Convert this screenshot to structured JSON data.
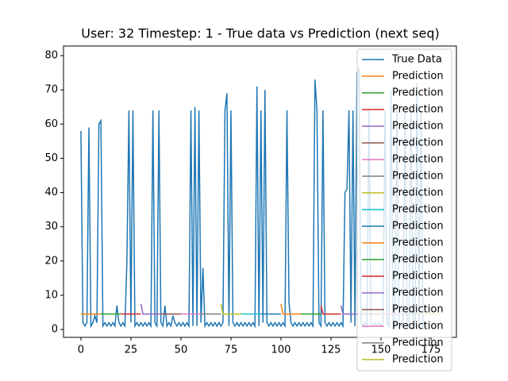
{
  "chart_data": {
    "type": "line",
    "title": "User: 32 Timestep: 1 - True data vs Prediction (next seq)",
    "xlim": [
      -8.7,
      187.7
    ],
    "ylim": [
      -2.3,
      82.8
    ],
    "xticks": [
      0,
      25,
      50,
      75,
      100,
      125,
      150,
      175
    ],
    "yticks": [
      0,
      10,
      20,
      30,
      40,
      50,
      60,
      70,
      80
    ],
    "legend": "upper right",
    "series": [
      {
        "name": "True Data",
        "color": "#1f77b4",
        "x": [
          0,
          1,
          2,
          3,
          4,
          5,
          6,
          7,
          8,
          9,
          10,
          11,
          12,
          13,
          14,
          15,
          16,
          17,
          18,
          19,
          20,
          21,
          22,
          23,
          24,
          25,
          26,
          27,
          28,
          29,
          30,
          31,
          32,
          33,
          34,
          35,
          36,
          37,
          38,
          39,
          40,
          41,
          42,
          43,
          44,
          45,
          46,
          47,
          48,
          49,
          50,
          51,
          52,
          53,
          54,
          55,
          56,
          57,
          58,
          59,
          60,
          61,
          62,
          63,
          64,
          65,
          66,
          67,
          68,
          69,
          70,
          71,
          72,
          73,
          74,
          75,
          76,
          77,
          78,
          79,
          80,
          81,
          82,
          83,
          84,
          85,
          86,
          87,
          88,
          89,
          90,
          91,
          92,
          93,
          94,
          95,
          96,
          97,
          98,
          99,
          100,
          101,
          102,
          103,
          104,
          105,
          106,
          107,
          108,
          109,
          110,
          111,
          112,
          113,
          114,
          115,
          116,
          117,
          118,
          119,
          120,
          121,
          122,
          123,
          124,
          125,
          126,
          127,
          128,
          129,
          130,
          131,
          132,
          133,
          134,
          135,
          136,
          137,
          138,
          139,
          140,
          141,
          142,
          143,
          144,
          145,
          146,
          147,
          148,
          149,
          150,
          151,
          152,
          153,
          154,
          155,
          156,
          157,
          158,
          159,
          160,
          161,
          162,
          163,
          164,
          165,
          166,
          167,
          168,
          169,
          170,
          171,
          172,
          173
        ],
        "values": [
          58,
          2,
          1,
          2,
          59,
          1,
          2,
          4,
          2,
          60,
          61,
          1,
          2,
          1,
          2,
          1,
          2,
          1,
          7,
          2,
          1,
          2,
          1,
          20,
          64,
          2,
          64,
          1,
          2,
          1,
          2,
          1,
          2,
          1,
          2,
          1,
          64,
          2,
          1,
          64,
          2,
          1,
          7,
          1,
          2,
          1,
          4,
          2,
          1,
          2,
          1,
          2,
          1,
          2,
          1,
          64,
          1,
          65,
          1,
          64,
          2,
          18,
          1,
          2,
          1,
          2,
          1,
          2,
          1,
          2,
          1,
          2,
          64,
          69,
          1,
          64,
          2,
          1,
          2,
          1,
          2,
          1,
          2,
          1,
          2,
          1,
          2,
          1,
          71,
          1,
          64,
          2,
          70,
          2,
          1,
          2,
          1,
          2,
          1,
          2,
          1,
          2,
          1,
          64,
          8,
          2,
          1,
          2,
          1,
          2,
          1,
          2,
          1,
          2,
          1,
          2,
          1,
          73,
          64,
          2,
          1,
          64,
          2,
          1,
          2,
          1,
          2,
          1,
          2,
          1,
          2,
          1,
          40,
          41,
          64,
          2,
          64,
          1,
          75,
          76,
          2,
          1,
          2,
          1,
          64,
          2,
          1,
          2,
          1,
          2,
          1,
          2,
          64,
          2,
          1,
          70,
          2,
          1,
          64,
          2,
          1,
          2,
          64,
          2,
          1,
          65,
          2,
          1,
          72,
          2,
          64,
          1,
          2,
          1
        ]
      },
      {
        "name": "Prediction",
        "color": "#ff7f0e",
        "x": [
          0,
          1,
          2,
          3,
          4,
          5,
          6,
          7,
          8,
          9,
          10
        ],
        "values": [
          4.6,
          4.5,
          4.5,
          4.5,
          4.5,
          4.5,
          4.5,
          4.5,
          4.5,
          4.5,
          4.5
        ]
      },
      {
        "name": "Prediction",
        "color": "#2ca02c",
        "x": [
          10,
          11,
          12,
          13,
          14,
          15,
          16,
          17,
          18,
          19,
          20
        ],
        "values": [
          4.6,
          4.5,
          4.5,
          4.5,
          4.5,
          4.5,
          4.5,
          4.5,
          4.5,
          4.5,
          4.5
        ]
      },
      {
        "name": "Prediction",
        "color": "#d62728",
        "x": [
          20,
          21,
          22,
          23,
          24,
          25,
          26,
          27,
          28,
          29,
          30
        ],
        "values": [
          4.6,
          4.5,
          4.5,
          4.5,
          4.5,
          4.5,
          4.5,
          4.5,
          4.5,
          4.5,
          4.5
        ]
      },
      {
        "name": "Prediction",
        "color": "#9467bd",
        "x": [
          30,
          31,
          32,
          33,
          34,
          35,
          36,
          37,
          38,
          39,
          40
        ],
        "values": [
          7.5,
          4.5,
          4.5,
          4.5,
          4.5,
          4.5,
          4.5,
          4.5,
          4.5,
          4.5,
          4.5
        ]
      },
      {
        "name": "Prediction",
        "color": "#8c564b",
        "x": [
          40,
          41,
          42,
          43,
          44,
          45,
          46,
          47,
          48,
          49,
          50
        ],
        "values": [
          4.6,
          4.5,
          4.5,
          4.5,
          4.5,
          4.5,
          4.5,
          4.5,
          4.5,
          4.5,
          4.5
        ]
      },
      {
        "name": "Prediction",
        "color": "#e377c2",
        "x": [
          50,
          51,
          52,
          53,
          54,
          55,
          56,
          57,
          58,
          59,
          60
        ],
        "values": [
          4.6,
          4.5,
          4.5,
          4.5,
          4.5,
          4.5,
          4.5,
          4.5,
          4.5,
          4.5,
          4.5
        ]
      },
      {
        "name": "Prediction",
        "color": "#7f7f7f",
        "x": [
          60,
          61,
          62,
          63,
          64,
          65,
          66,
          67,
          68,
          69,
          70
        ],
        "values": [
          4.6,
          4.5,
          4.5,
          4.5,
          4.5,
          4.5,
          4.5,
          4.5,
          4.5,
          4.5,
          4.5
        ]
      },
      {
        "name": "Prediction",
        "color": "#bcbd22",
        "x": [
          70,
          71,
          72,
          73,
          74,
          75,
          76,
          77,
          78,
          79,
          80
        ],
        "values": [
          7.5,
          4.5,
          4.5,
          4.5,
          4.5,
          4.5,
          4.5,
          4.5,
          4.5,
          4.5,
          4.5
        ]
      },
      {
        "name": "Prediction",
        "color": "#17becf",
        "x": [
          80,
          81,
          82,
          83,
          84,
          85,
          86,
          87,
          88,
          89,
          90
        ],
        "values": [
          4.6,
          4.5,
          4.5,
          4.5,
          4.5,
          4.5,
          4.5,
          4.5,
          4.5,
          4.5,
          4.5
        ]
      },
      {
        "name": "Prediction",
        "color": "#1f77b4",
        "x": [
          90,
          91,
          92,
          93,
          94,
          95,
          96,
          97,
          98,
          99,
          100
        ],
        "values": [
          4.6,
          4.5,
          4.5,
          4.5,
          4.5,
          4.5,
          4.5,
          4.5,
          4.5,
          4.5,
          4.5
        ]
      },
      {
        "name": "Prediction",
        "color": "#ff7f0e",
        "x": [
          100,
          101,
          102,
          103,
          104,
          105,
          106,
          107,
          108,
          109,
          110
        ],
        "values": [
          7.5,
          4.5,
          4.5,
          4.5,
          4.5,
          4.5,
          4.5,
          4.5,
          4.5,
          4.5,
          4.5
        ]
      },
      {
        "name": "Prediction",
        "color": "#2ca02c",
        "x": [
          110,
          111,
          112,
          113,
          114,
          115,
          116,
          117,
          118,
          119,
          120
        ],
        "values": [
          4.6,
          4.5,
          4.5,
          4.5,
          4.5,
          4.5,
          4.5,
          4.5,
          4.5,
          4.5,
          4.5
        ]
      },
      {
        "name": "Prediction",
        "color": "#d62728",
        "x": [
          120,
          121,
          122,
          123,
          124,
          125,
          126,
          127,
          128,
          129,
          130
        ],
        "values": [
          7,
          4.5,
          4.5,
          4.5,
          4.5,
          4.5,
          4.5,
          4.5,
          4.5,
          4.5,
          4.5
        ]
      },
      {
        "name": "Prediction",
        "color": "#9467bd",
        "x": [
          130,
          131,
          132,
          133,
          134,
          135,
          136,
          137,
          138,
          139,
          140
        ],
        "values": [
          7,
          4.5,
          4.5,
          4.5,
          4.5,
          4.5,
          4.5,
          4.5,
          4.5,
          4.5,
          4.5
        ]
      },
      {
        "name": "Prediction",
        "color": "#8c564b",
        "x": [
          140,
          141,
          142,
          143,
          144,
          145,
          146,
          147,
          148,
          149,
          150
        ],
        "values": [
          4.6,
          4.5,
          4.5,
          4.5,
          4.5,
          4.5,
          4.5,
          4.5,
          4.5,
          4.5,
          4.5
        ]
      },
      {
        "name": "Prediction",
        "color": "#e377c2",
        "x": [
          150,
          151,
          152,
          153,
          154,
          155,
          156,
          157,
          158,
          159,
          160
        ],
        "values": [
          4.6,
          4.5,
          4.5,
          4.5,
          4.5,
          4.5,
          4.5,
          4.5,
          4.5,
          4.5,
          4.5
        ]
      },
      {
        "name": "Prediction",
        "color": "#7f7f7f",
        "x": [
          160,
          161,
          162,
          163,
          164,
          165,
          166,
          167,
          168,
          169,
          170
        ],
        "values": [
          4.6,
          4.5,
          4.5,
          4.5,
          4.5,
          4.5,
          4.5,
          4.5,
          4.5,
          4.5,
          4.5
        ]
      },
      {
        "name": "Prediction",
        "color": "#bcbd22",
        "x": [
          170,
          171,
          172,
          173,
          174,
          175,
          176,
          177,
          178,
          179,
          180
        ],
        "values": [
          4.6,
          4.5,
          4.5,
          4.5,
          4.5,
          4.5,
          4.5,
          4.5,
          4.5,
          4.5,
          4.5
        ]
      }
    ]
  }
}
